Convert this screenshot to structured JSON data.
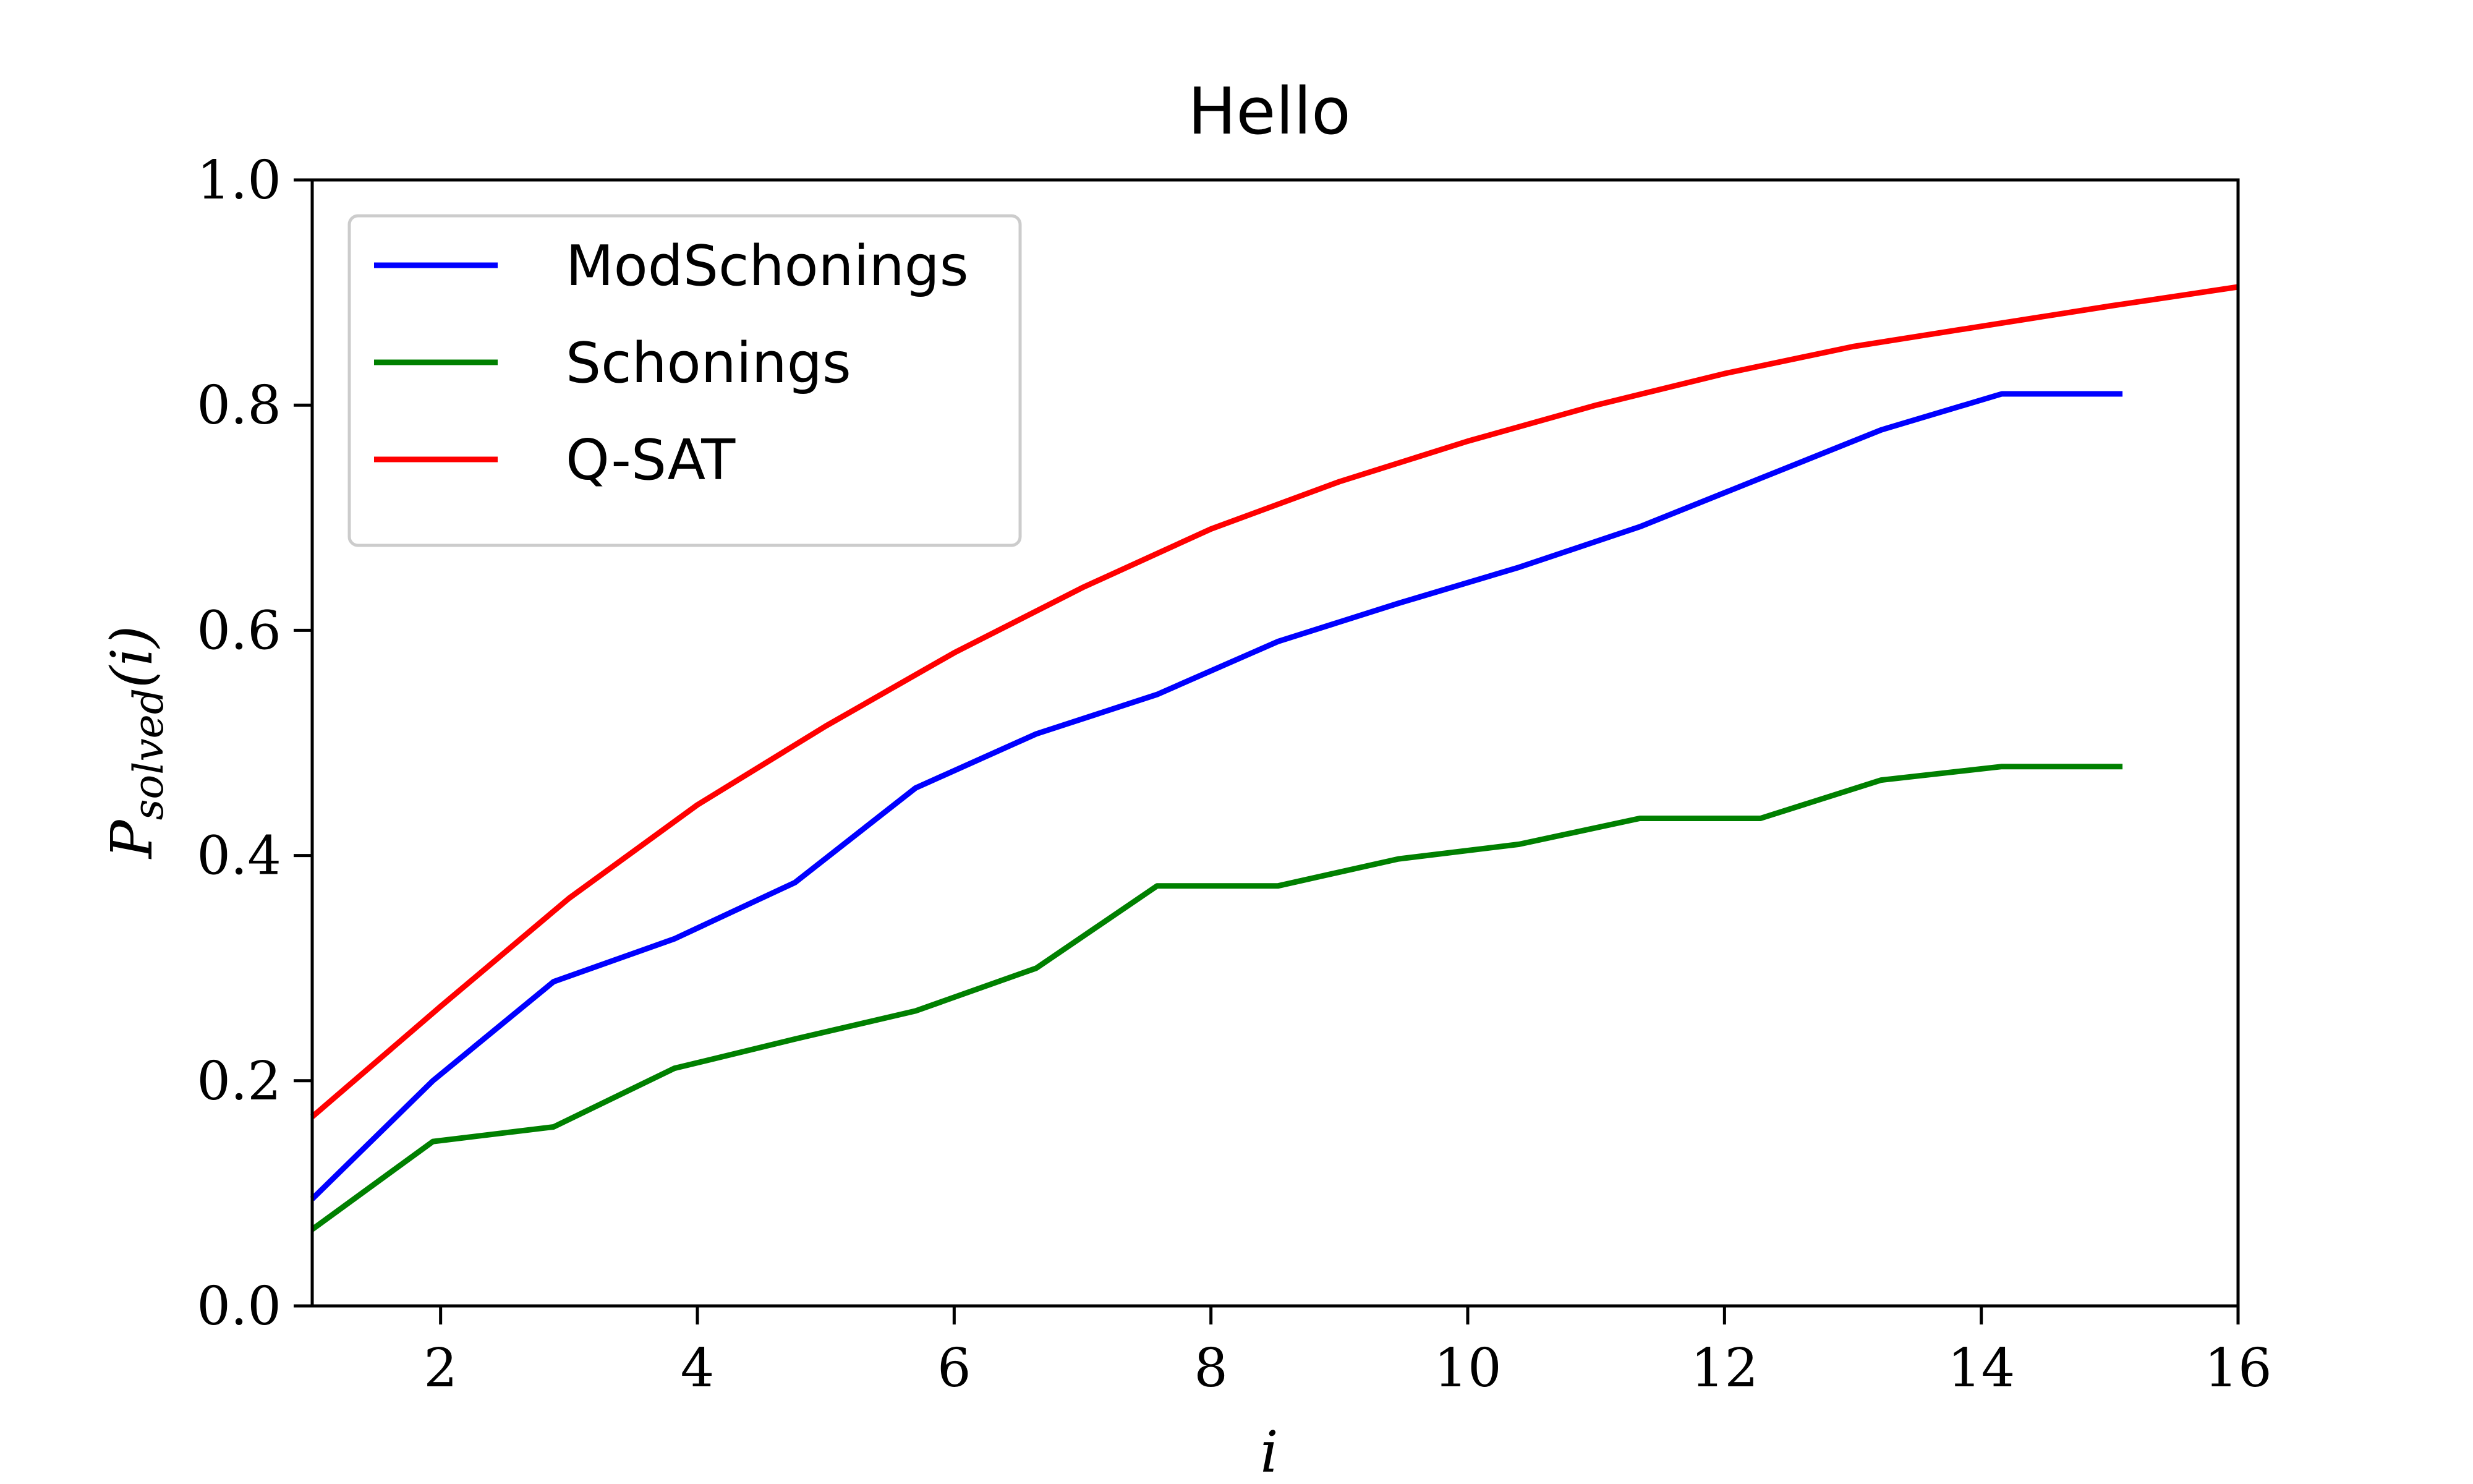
{
  "chart_data": {
    "type": "line",
    "title": "Hello",
    "xlabel": "i",
    "ylabel": "P",
    "ylabel_sub": "solved",
    "ylabel_tail": "(i)",
    "xlim": [
      1,
      16
    ],
    "ylim": [
      0,
      1
    ],
    "xticks": [
      2,
      4,
      6,
      8,
      10,
      12,
      14,
      16
    ],
    "yticks": [
      0.0,
      0.2,
      0.4,
      0.6,
      0.8,
      1.0
    ],
    "xtick_labels": [
      "2",
      "4",
      "6",
      "8",
      "10",
      "12",
      "14",
      "16"
    ],
    "ytick_labels": [
      "0.0",
      "0.2",
      "0.4",
      "0.6",
      "0.8",
      "1.0"
    ],
    "grid": false,
    "legend_position": "upper-left",
    "series": [
      {
        "name": "ModSchonings",
        "color": "#0000ff",
        "x": [
          1,
          1.94,
          2.88,
          3.82,
          4.76,
          5.7,
          6.64,
          7.58,
          8.52,
          9.46,
          10.4,
          11.34,
          12.28,
          13.22,
          14.16,
          15.1
        ],
        "y": [
          0.095,
          0.2,
          0.288,
          0.326,
          0.376,
          0.46,
          0.508,
          0.543,
          0.59,
          0.624,
          0.656,
          0.692,
          0.735,
          0.778,
          0.81,
          0.81
        ]
      },
      {
        "name": "Schonings",
        "color": "#008000",
        "x": [
          1,
          1.94,
          2.88,
          3.82,
          4.76,
          5.7,
          6.64,
          7.58,
          8.52,
          9.46,
          10.4,
          11.34,
          12.28,
          13.22,
          14.16,
          15.1
        ],
        "y": [
          0.068,
          0.146,
          0.159,
          0.211,
          0.237,
          0.262,
          0.3,
          0.373,
          0.373,
          0.397,
          0.41,
          0.433,
          0.433,
          0.467,
          0.479,
          0.479
        ]
      },
      {
        "name": "Q-SAT",
        "color": "#ff0000",
        "x": [
          1,
          2,
          3,
          4,
          5,
          6,
          7,
          8,
          9,
          10,
          11,
          12,
          13,
          14,
          15,
          16
        ],
        "y": [
          0.168,
          0.266,
          0.362,
          0.445,
          0.515,
          0.58,
          0.638,
          0.69,
          0.732,
          0.768,
          0.8,
          0.828,
          0.852,
          0.87,
          0.888,
          0.905
        ]
      }
    ]
  }
}
